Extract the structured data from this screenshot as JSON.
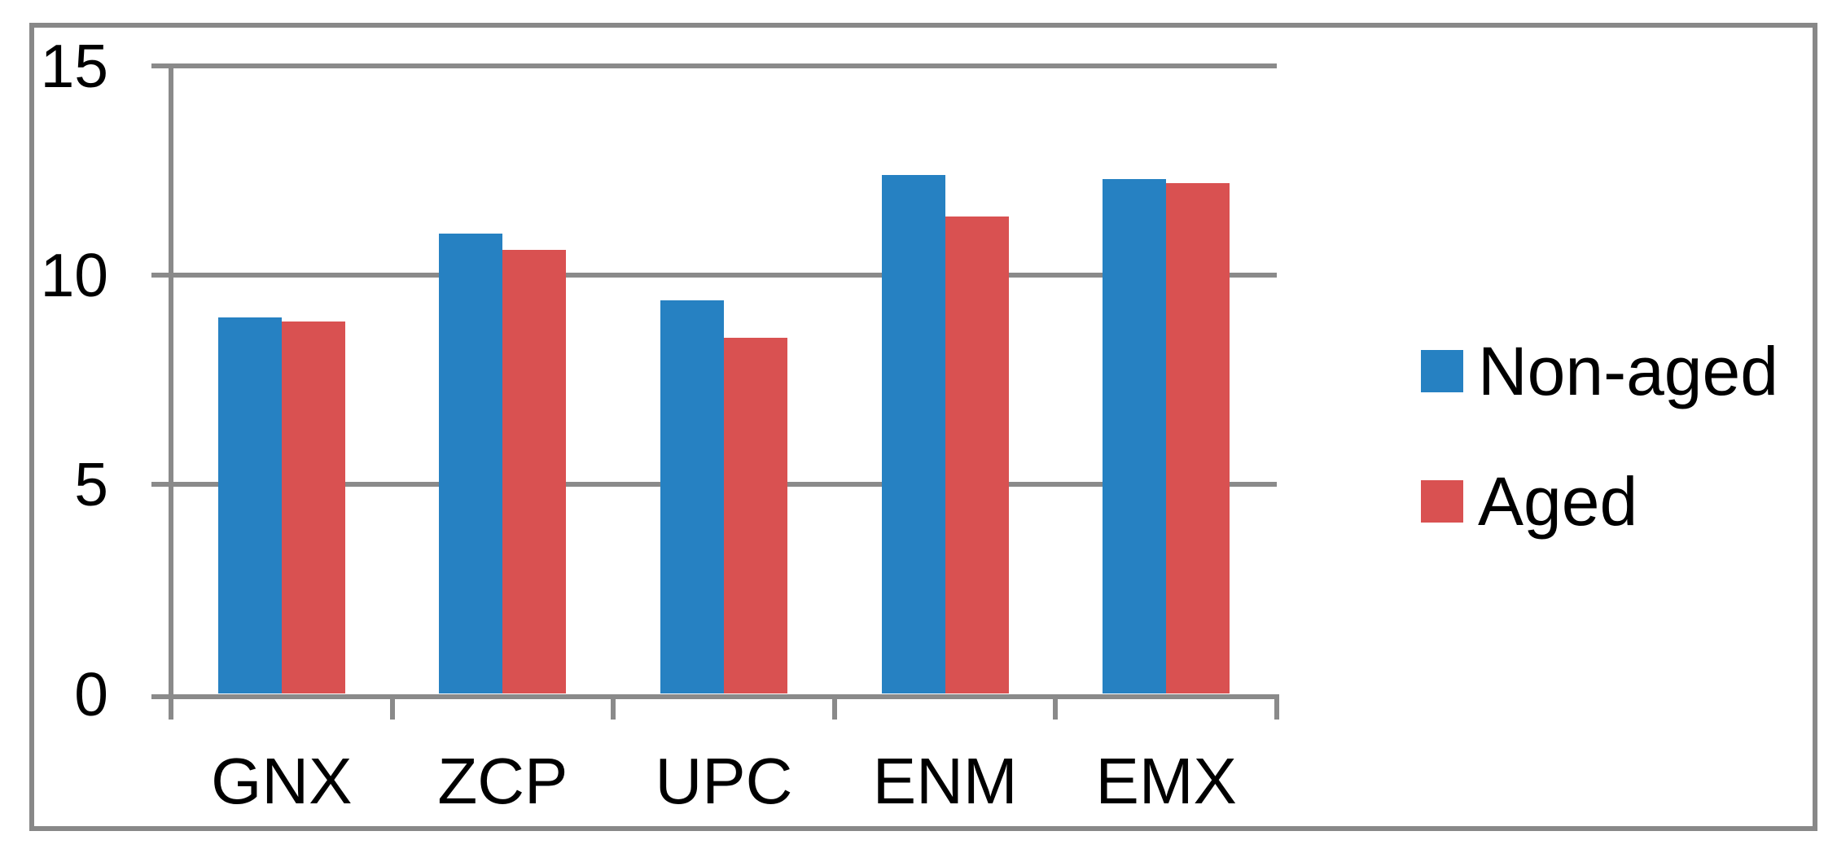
{
  "chart_data": {
    "type": "bar",
    "categories": [
      "GNX",
      "ZCP",
      "UPC",
      "ENM",
      "EMX"
    ],
    "series": [
      {
        "name": "Non-aged",
        "color": "#2681C2",
        "values": [
          9.0,
          11.0,
          9.4,
          12.4,
          12.3
        ]
      },
      {
        "name": "Aged",
        "color": "#D95151",
        "values": [
          8.9,
          10.6,
          8.5,
          11.4,
          12.2
        ]
      }
    ],
    "title": "",
    "xlabel": "",
    "ylabel": "",
    "ylim": [
      0,
      15
    ],
    "y_ticks": [
      0,
      5,
      10,
      15
    ],
    "grid": true,
    "legend_position": "right",
    "gridline_color": "#8a8a8a",
    "frame_color": "#888888",
    "text_color": "#000000",
    "background_color": "#ffffff"
  }
}
